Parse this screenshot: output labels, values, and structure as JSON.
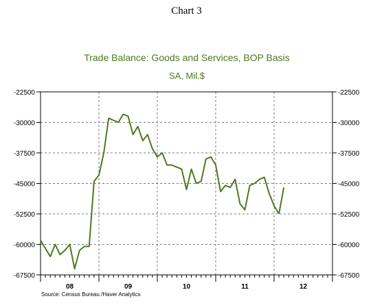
{
  "page": {
    "heading": "Chart 3"
  },
  "chart_data": {
    "type": "line",
    "title": "Trade Balance:  Goods and Services, BOP Basis",
    "subtitle": "SA, Mil.$",
    "source": "Source: Census Bureau /Haver Analytics",
    "ylim": [
      -67500,
      -22500
    ],
    "yticks": [
      -22500,
      -30000,
      -37500,
      -45000,
      -52500,
      -60000,
      -67500
    ],
    "ytick_labels": [
      "-22500",
      "-30000",
      "-37500",
      "-45000",
      "-52500",
      "-60000",
      "-67500"
    ],
    "xlim": [
      0,
      60
    ],
    "xtick_labels": [
      "08",
      "09",
      "10",
      "11",
      "12"
    ],
    "grid": true,
    "line_color": "#4a7a1e",
    "series": [
      {
        "x": [
          0,
          1,
          2,
          3,
          4,
          5,
          6,
          7,
          8,
          9,
          10,
          11,
          12,
          13,
          14,
          15,
          16,
          17,
          18,
          19,
          20,
          21,
          22,
          23,
          24,
          25,
          26,
          27,
          28,
          29,
          30,
          31,
          32,
          33,
          34,
          35,
          36,
          37,
          38,
          39,
          40,
          41,
          42,
          43,
          44,
          45,
          46,
          47,
          48,
          49
        ],
        "values": [
          -59000,
          -61000,
          -63000,
          -60000,
          -62500,
          -61500,
          -60000,
          -66000,
          -61500,
          -60500,
          -60500,
          -44500,
          -43000,
          -37500,
          -29000,
          -29500,
          -30000,
          -28000,
          -28500,
          -33000,
          -31000,
          -34500,
          -33000,
          -36500,
          -38500,
          -37500,
          -40500,
          -40500,
          -41000,
          -41500,
          -46500,
          -41500,
          -45000,
          -44500,
          -39000,
          -38500,
          -40500,
          -47000,
          -45500,
          -46000,
          -44000,
          -50000,
          -51500,
          -45500,
          -45000,
          -44000,
          -43500,
          -47500,
          -50500,
          -52500
        ]
      },
      {
        "x": [
          50
        ],
        "values": [
          -46000
        ]
      }
    ]
  }
}
